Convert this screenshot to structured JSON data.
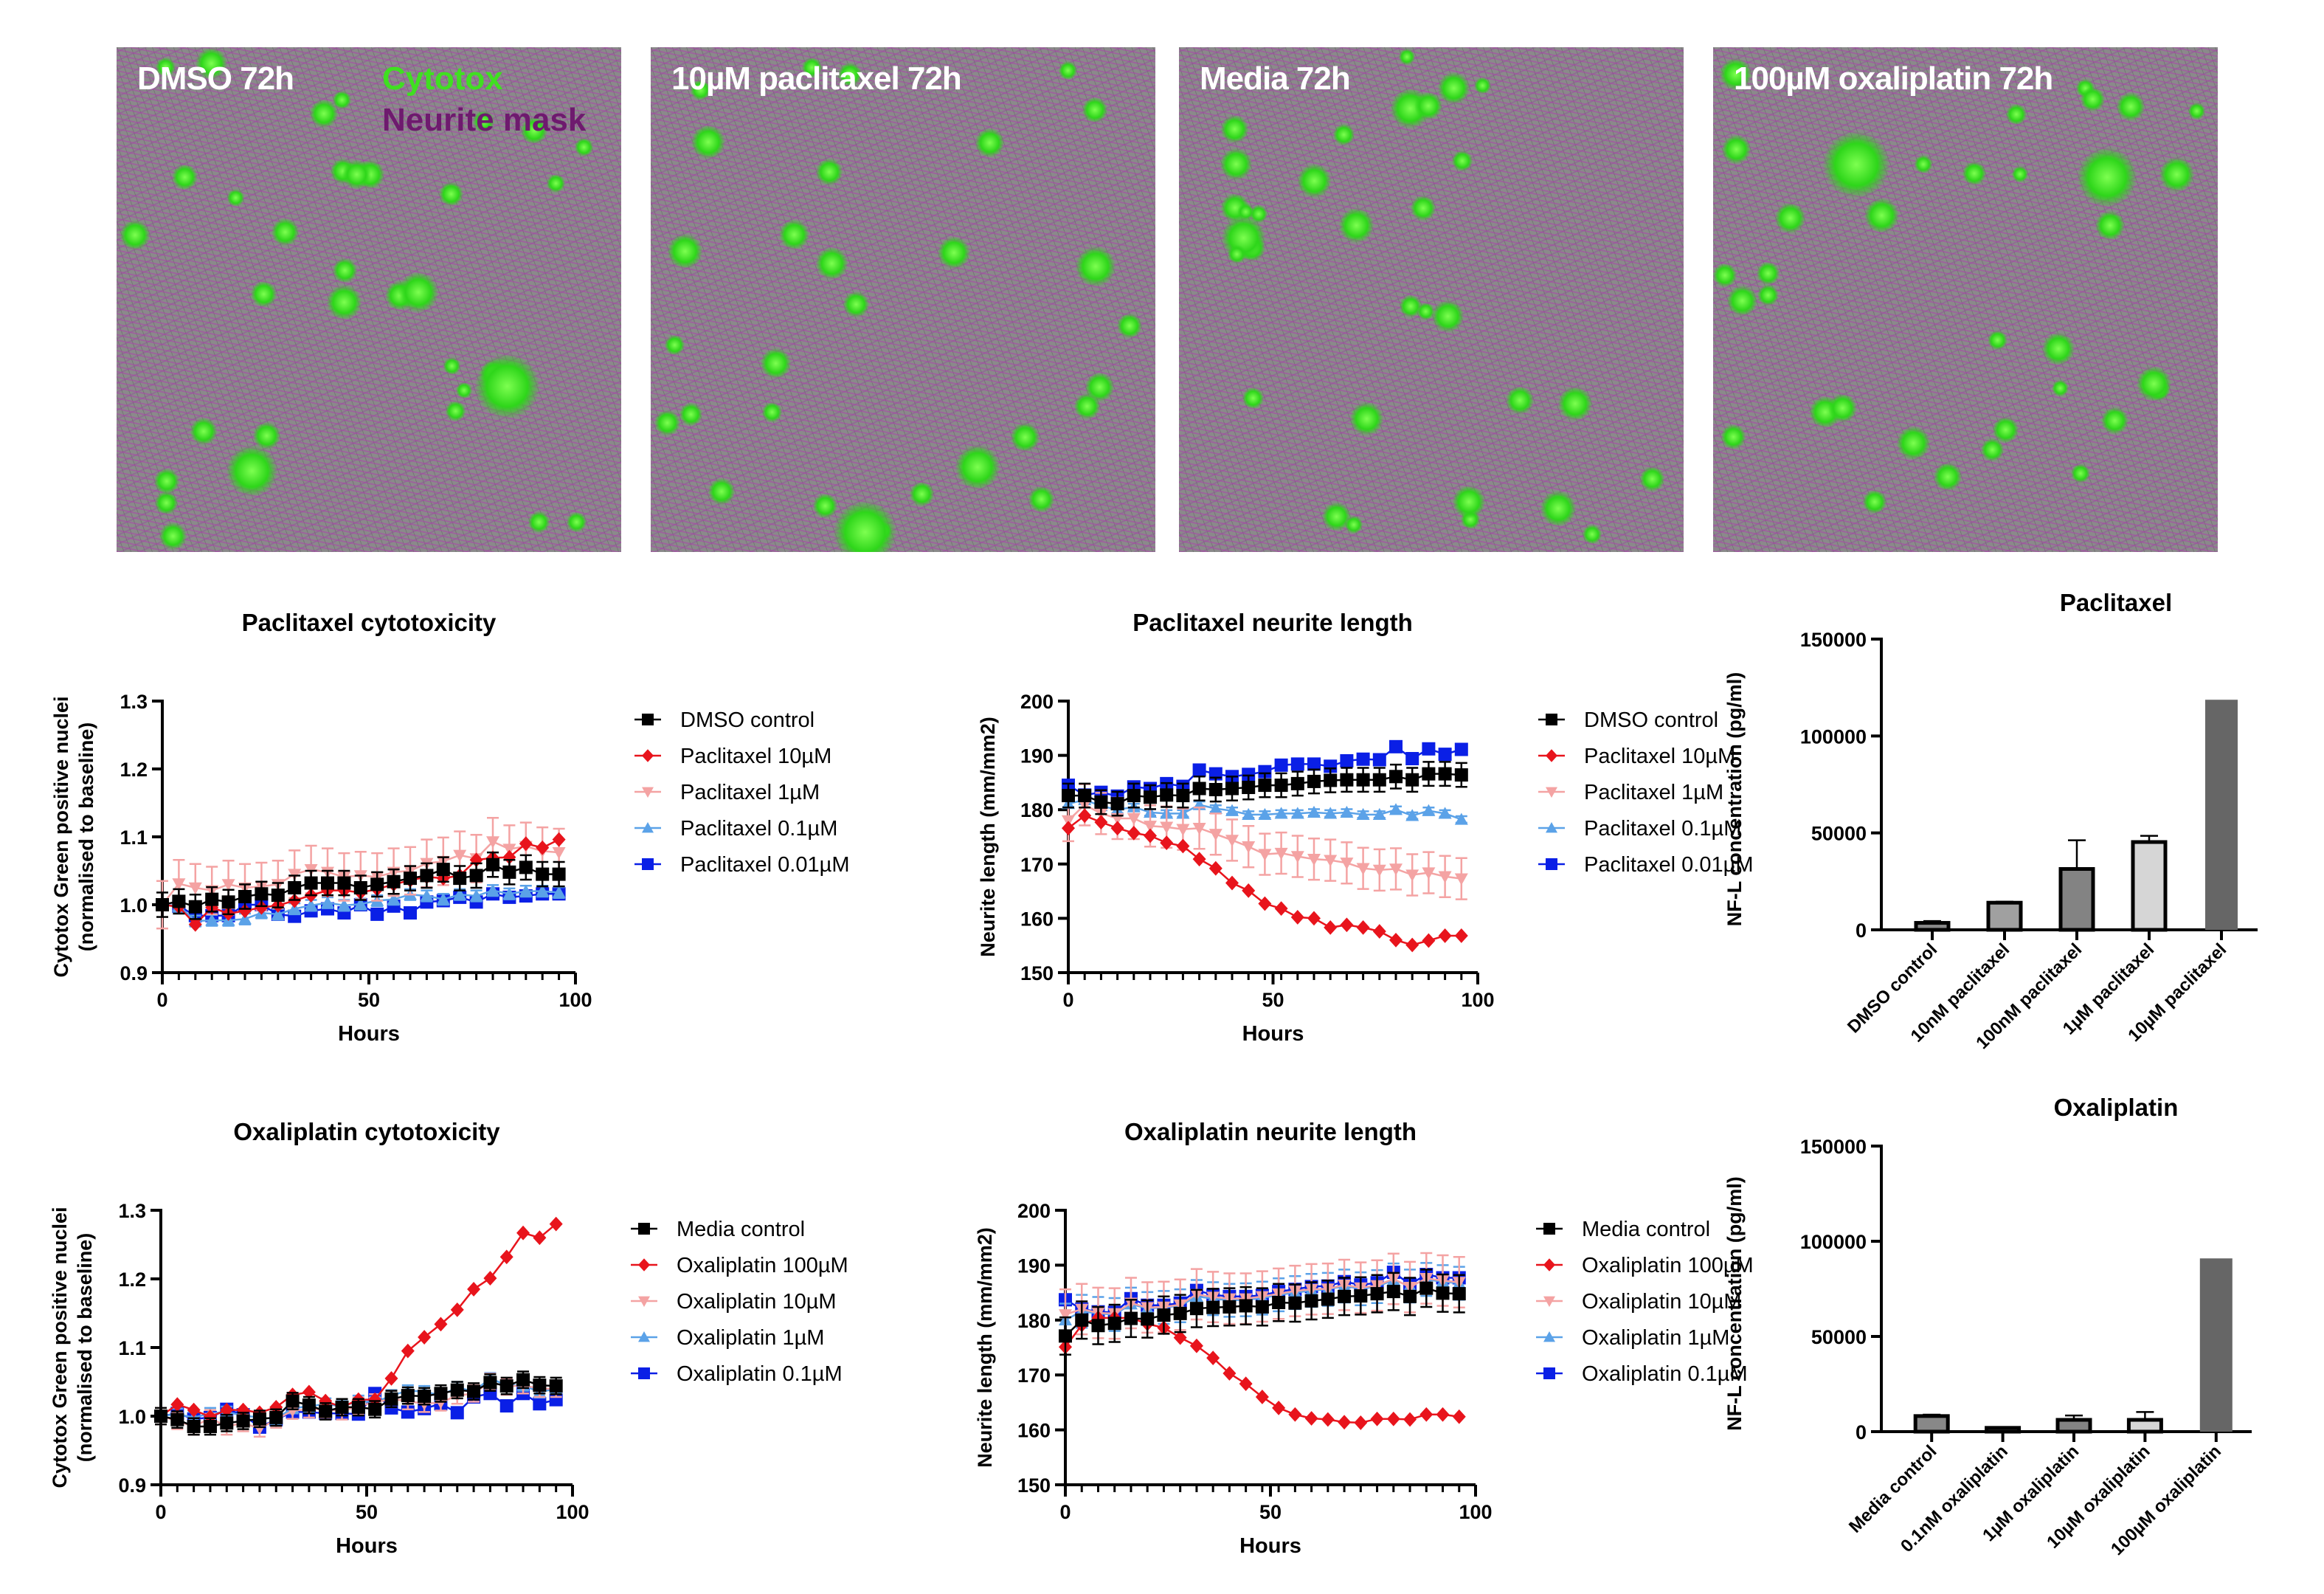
{
  "panels": [
    {
      "title": "DMSO 72h",
      "overlay_labels": [
        "Cytotox",
        "Neurite mask"
      ]
    },
    {
      "title": "10µM paclitaxel 72h"
    },
    {
      "title": "Media 72h"
    },
    {
      "title": "100µM oxaliplatin 72h"
    }
  ],
  "overlay_colors": {
    "cytotox": "#3fe020",
    "neurite_mask": "#6e1a6e"
  },
  "series_colors": {
    "control": "#000000",
    "high": "#e8141c",
    "mid": "#f4a3a3",
    "low": "#5ba2e8",
    "lowest": "#0a1fe6"
  },
  "chart_data": [
    {
      "id": "pac_cyto",
      "type": "line",
      "title": "Paclitaxel cytotoxicity",
      "xlabel": "Hours",
      "ylabel": [
        "Cytotox Green positive nuclei",
        "(normalised to baseline)"
      ],
      "xlim": [
        0,
        100
      ],
      "ylim": [
        0.9,
        1.3
      ],
      "xticks": [
        "0",
        "50",
        "100"
      ],
      "yticks": [
        "0.9",
        "1.0",
        "1.1",
        "1.2",
        "1.3"
      ],
      "x": [
        0,
        4,
        8,
        12,
        16,
        20,
        24,
        28,
        32,
        36,
        40,
        44,
        48,
        52,
        56,
        60,
        64,
        68,
        72,
        76,
        80,
        84,
        88,
        92,
        96
      ],
      "legend_position": "right",
      "series": [
        {
          "name": "DMSO control",
          "marker": "square",
          "color_key": "control",
          "err": 0.018,
          "values": [
            1.0,
            1.005,
            0.997,
            1.008,
            1.004,
            1.012,
            1.016,
            1.014,
            1.025,
            1.032,
            1.032,
            1.032,
            1.025,
            1.03,
            1.034,
            1.039,
            1.043,
            1.052,
            1.039,
            1.043,
            1.059,
            1.048,
            1.055,
            1.045,
            1.045
          ]
        },
        {
          "name": "Paclitaxel 10µM",
          "marker": "diamond",
          "color_key": "high",
          "err": 0.0,
          "values": [
            1.0,
            0.997,
            0.971,
            0.996,
            0.987,
            0.991,
            0.996,
            0.999,
            1.006,
            1.014,
            1.021,
            1.021,
            1.018,
            1.023,
            1.03,
            1.036,
            1.041,
            1.039,
            1.043,
            1.066,
            1.069,
            1.07,
            1.09,
            1.084,
            1.096
          ]
        },
        {
          "name": "Paclitaxel 1µM",
          "marker": "triangle-down",
          "color_key": "mid",
          "err": 0.035,
          "values": [
            1.0,
            1.031,
            1.025,
            1.021,
            1.03,
            1.025,
            1.027,
            1.03,
            1.045,
            1.052,
            1.048,
            1.041,
            1.043,
            1.041,
            1.048,
            1.05,
            1.061,
            1.064,
            1.073,
            1.068,
            1.093,
            1.082,
            1.086,
            1.079,
            1.077
          ]
        },
        {
          "name": "Paclitaxel 0.1µM",
          "marker": "triangle-up",
          "color_key": "low",
          "err": 0.008,
          "values": [
            1.0,
            0.998,
            0.976,
            0.977,
            0.977,
            0.979,
            0.988,
            0.986,
            0.994,
            0.999,
            1.003,
            0.999,
            1.001,
            1.006,
            1.008,
            1.015,
            1.013,
            1.008,
            1.015,
            1.013,
            1.021,
            1.016,
            1.02,
            1.02,
            1.018
          ]
        },
        {
          "name": "Paclitaxel 0.01µM",
          "marker": "square",
          "color_key": "lowest",
          "err": 0.0,
          "values": [
            1.0,
            0.998,
            0.984,
            0.984,
            0.984,
            1.0,
            1.0,
            0.986,
            0.983,
            0.991,
            0.994,
            0.988,
            1.0,
            0.986,
            0.998,
            0.988,
            1.004,
            1.006,
            1.011,
            1.004,
            1.016,
            1.011,
            1.013,
            1.016,
            1.016
          ]
        }
      ]
    },
    {
      "id": "pac_neurite",
      "type": "line",
      "title": "Paclitaxel neurite length",
      "xlabel": "Hours",
      "ylabel": [
        "Neurite length (mm/mm2)"
      ],
      "xlim": [
        0,
        100
      ],
      "ylim": [
        150,
        200
      ],
      "xticks": [
        "0",
        "50",
        "100"
      ],
      "yticks": [
        "150",
        "160",
        "170",
        "180",
        "190",
        "200"
      ],
      "x": [
        0,
        4,
        8,
        12,
        16,
        20,
        24,
        28,
        32,
        36,
        40,
        44,
        48,
        52,
        56,
        60,
        64,
        68,
        72,
        76,
        80,
        84,
        88,
        92,
        96
      ],
      "legend_position": "right",
      "series": [
        {
          "name": "DMSO control",
          "marker": "square",
          "color_key": "control",
          "err": 2.2,
          "values": [
            182.6,
            182.6,
            181.4,
            181.1,
            182.6,
            182.3,
            182.7,
            182.6,
            183.9,
            183.7,
            183.9,
            184.1,
            184.5,
            184.5,
            184.8,
            185.2,
            185.4,
            185.5,
            185.5,
            185.5,
            186.1,
            185.5,
            186.6,
            186.6,
            186.4
          ]
        },
        {
          "name": "Paclitaxel 10µM",
          "marker": "diamond",
          "color_key": "high",
          "err": 0.0,
          "values": [
            176.6,
            178.9,
            177.7,
            176.6,
            175.7,
            175.2,
            173.9,
            173.3,
            170.9,
            169.2,
            166.5,
            165.1,
            162.7,
            161.8,
            160.2,
            160.0,
            158.3,
            158.8,
            158.3,
            157.6,
            156.0,
            155.1,
            155.9,
            156.8,
            156.8
          ]
        },
        {
          "name": "Paclitaxel 1µM",
          "marker": "triangle-down",
          "color_key": "mid",
          "err": 3.8,
          "values": [
            178.0,
            180.9,
            179.3,
            178.4,
            178.4,
            177.0,
            176.8,
            176.4,
            176.6,
            175.5,
            174.4,
            173.2,
            171.8,
            172.0,
            171.4,
            170.9,
            170.7,
            170.2,
            169.2,
            168.9,
            169.1,
            168.0,
            168.4,
            167.7,
            167.3
          ]
        },
        {
          "name": "Paclitaxel 0.1µM",
          "marker": "triangle-up",
          "color_key": "low",
          "err": 0.6,
          "values": [
            181.1,
            181.8,
            180.7,
            180.0,
            180.5,
            179.5,
            179.3,
            179.3,
            180.9,
            180.2,
            179.8,
            179.1,
            179.1,
            179.3,
            179.3,
            179.5,
            179.3,
            179.5,
            179.1,
            179.1,
            180.0,
            178.9,
            179.8,
            179.3,
            178.2
          ]
        },
        {
          "name": "Paclitaxel 0.01µM",
          "marker": "square",
          "color_key": "lowest",
          "err": 0.0,
          "values": [
            184.5,
            182.7,
            183.2,
            182.5,
            184.2,
            183.9,
            184.8,
            184.3,
            187.3,
            186.6,
            186.1,
            186.5,
            187.0,
            188.2,
            188.4,
            188.4,
            188.0,
            189.0,
            189.3,
            189.2,
            191.6,
            189.4,
            191.2,
            190.2,
            191.1
          ]
        }
      ]
    },
    {
      "id": "oxa_cyto",
      "type": "line",
      "title": "Oxaliplatin cytotoxicity",
      "xlabel": "Hours",
      "ylabel": [
        "Cytotox Green positive nuclei",
        "(normalised to baseline)"
      ],
      "xlim": [
        0,
        100
      ],
      "ylim": [
        0.9,
        1.3
      ],
      "xticks": [
        "0",
        "50",
        "100"
      ],
      "yticks": [
        "0.9",
        "1.0",
        "1.1",
        "1.2",
        "1.3"
      ],
      "x": [
        0,
        4,
        8,
        12,
        16,
        20,
        24,
        28,
        32,
        36,
        40,
        44,
        48,
        52,
        56,
        60,
        64,
        68,
        72,
        76,
        80,
        84,
        88,
        92,
        96
      ],
      "legend_position": "right",
      "series": [
        {
          "name": "Media control",
          "marker": "square",
          "color_key": "control",
          "err": 0.012,
          "values": [
            1.0,
            0.995,
            0.985,
            0.985,
            0.99,
            0.993,
            0.996,
            0.998,
            1.022,
            1.016,
            1.007,
            1.013,
            1.013,
            1.01,
            1.025,
            1.03,
            1.029,
            1.033,
            1.038,
            1.036,
            1.049,
            1.044,
            1.053,
            1.045,
            1.044
          ]
        },
        {
          "name": "Oxaliplatin 100µM",
          "marker": "diamond",
          "color_key": "high",
          "err": 0.0,
          "values": [
            1.0,
            1.017,
            1.009,
            0.999,
            1.009,
            1.009,
            1.005,
            1.013,
            1.031,
            1.035,
            1.022,
            1.013,
            1.024,
            1.024,
            1.055,
            1.095,
            1.115,
            1.134,
            1.155,
            1.185,
            1.201,
            1.232,
            1.267,
            1.26,
            1.28
          ]
        },
        {
          "name": "Oxaliplatin 10µM",
          "marker": "triangle-down",
          "color_key": "mid",
          "err": 0.012,
          "values": [
            1.0,
            0.993,
            0.985,
            0.997,
            0.985,
            0.99,
            0.982,
            0.995,
            1.008,
            1.01,
            1.01,
            1.007,
            1.015,
            1.02,
            1.025,
            1.022,
            1.018,
            1.02,
            1.03,
            1.033,
            1.05,
            1.043,
            1.045,
            1.04,
            1.04
          ]
        },
        {
          "name": "Oxaliplatin 1µM",
          "marker": "triangle-up",
          "color_key": "low",
          "err": 0.008,
          "values": [
            1.0,
            1.003,
            0.998,
            1.004,
            1.006,
            1.001,
            0.998,
            0.996,
            1.012,
            1.014,
            1.018,
            1.014,
            1.022,
            1.02,
            1.03,
            1.037,
            1.036,
            1.03,
            1.042,
            1.036,
            1.055,
            1.045,
            1.045,
            1.035,
            1.04
          ]
        },
        {
          "name": "Oxaliplatin 0.1µM",
          "marker": "square",
          "color_key": "lowest",
          "err": 0.0,
          "values": [
            1.0,
            1.004,
            0.996,
            0.998,
            1.01,
            1.002,
            0.984,
            0.995,
            1.006,
            1.006,
            1.004,
            1.004,
            1.003,
            1.033,
            1.012,
            1.006,
            1.011,
            1.018,
            1.005,
            1.028,
            1.033,
            1.015,
            1.033,
            1.018,
            1.024
          ]
        }
      ]
    },
    {
      "id": "oxa_neurite",
      "type": "line",
      "title": "Oxaliplatin neurite length",
      "xlabel": "Hours",
      "ylabel": [
        "Neurite length (mm/mm2)"
      ],
      "xlim": [
        0,
        100
      ],
      "ylim": [
        150,
        200
      ],
      "xticks": [
        "0",
        "50",
        "100"
      ],
      "yticks": [
        "150",
        "160",
        "170",
        "180",
        "190",
        "200"
      ],
      "x": [
        0,
        4,
        8,
        12,
        16,
        20,
        24,
        28,
        32,
        36,
        40,
        44,
        48,
        52,
        56,
        60,
        64,
        68,
        72,
        76,
        80,
        84,
        88,
        92,
        96
      ],
      "legend_position": "right",
      "series": [
        {
          "name": "Media control",
          "marker": "square",
          "color_key": "control",
          "err": 3.4,
          "values": [
            177.1,
            180.0,
            179.0,
            179.4,
            180.3,
            180.2,
            180.9,
            181.2,
            182.1,
            182.3,
            182.4,
            182.6,
            182.4,
            183.2,
            183.1,
            183.5,
            183.8,
            184.3,
            184.4,
            184.8,
            185.2,
            184.3,
            185.8,
            184.9,
            184.8
          ]
        },
        {
          "name": "Oxaliplatin 100µM",
          "marker": "diamond",
          "color_key": "high",
          "err": 0.0,
          "values": [
            175.1,
            179.1,
            180.4,
            180.4,
            180.4,
            179.3,
            178.6,
            176.8,
            175.3,
            173.1,
            170.3,
            168.4,
            166.0,
            164.0,
            162.8,
            162.1,
            161.9,
            161.4,
            161.3,
            162.0,
            162.0,
            161.9,
            162.8,
            162.8,
            162.4
          ]
        },
        {
          "name": "Oxaliplatin 10µM",
          "marker": "triangle-down",
          "color_key": "mid",
          "err": 4.6,
          "values": [
            181.0,
            182.0,
            181.3,
            181.2,
            183.1,
            182.3,
            182.4,
            182.8,
            184.7,
            184.2,
            183.9,
            183.9,
            184.3,
            184.8,
            185.3,
            185.6,
            185.7,
            186.4,
            185.9,
            186.3,
            187.5,
            186.0,
            187.6,
            187.2,
            186.9
          ]
        },
        {
          "name": "Oxaliplatin 1µM",
          "marker": "triangle-up",
          "color_key": "low",
          "err": 3.0,
          "values": [
            180.0,
            181.6,
            181.2,
            181.0,
            182.9,
            182.1,
            182.3,
            182.6,
            184.3,
            183.9,
            183.6,
            183.7,
            184.0,
            184.6,
            185.0,
            185.4,
            185.6,
            186.2,
            185.7,
            186.1,
            187.3,
            186.2,
            187.4,
            187.0,
            186.7
          ]
        },
        {
          "name": "Oxaliplatin 0.1µM",
          "marker": "square",
          "color_key": "lowest",
          "err": 0.0,
          "values": [
            183.7,
            182.0,
            181.5,
            181.4,
            183.9,
            182.7,
            182.7,
            183.1,
            185.4,
            184.6,
            184.3,
            184.3,
            184.5,
            185.2,
            185.6,
            186.1,
            186.2,
            187.0,
            186.4,
            186.8,
            188.7,
            186.5,
            188.3,
            187.7,
            187.7
          ]
        }
      ]
    },
    {
      "id": "pac_nfl",
      "type": "bar",
      "title": "Paclitaxel",
      "ylabel": "NF-L concentration  (pg/ml)",
      "ylim": [
        0,
        150000
      ],
      "yticks": [
        "0",
        "50000",
        "100000",
        "150000"
      ],
      "categories": [
        "DMSO control",
        "10nM paclitaxel",
        "100nM paclitaxel",
        "1µM paclitaxel",
        "10µM paclitaxel"
      ],
      "values": [
        3600,
        14000,
        31400,
        45300,
        118700
      ],
      "errors": [
        900,
        500,
        14800,
        3200,
        0
      ],
      "bar_colors": [
        "#888888",
        "#a0a0a0",
        "#838383",
        "#d6d6d6",
        "#666666"
      ]
    },
    {
      "id": "oxa_nfl",
      "type": "bar",
      "title": "Oxaliplatin",
      "ylabel": "NF-L concentration  (pg/ml)",
      "ylim": [
        0,
        150000
      ],
      "yticks": [
        "0",
        "50000",
        "100000",
        "150000"
      ],
      "categories": [
        "Media control",
        "0.1nM oxaliplatin",
        "1µM oxaliplatin",
        "10µM oxaliplatin",
        "100µM oxaliplatin"
      ],
      "values": [
        8200,
        2000,
        6200,
        6200,
        91000
      ],
      "errors": [
        700,
        0,
        2300,
        4100,
        0
      ],
      "bar_colors": [
        "#888888",
        "#a0a0a0",
        "#838383",
        "#d6d6d6",
        "#666666"
      ]
    }
  ]
}
